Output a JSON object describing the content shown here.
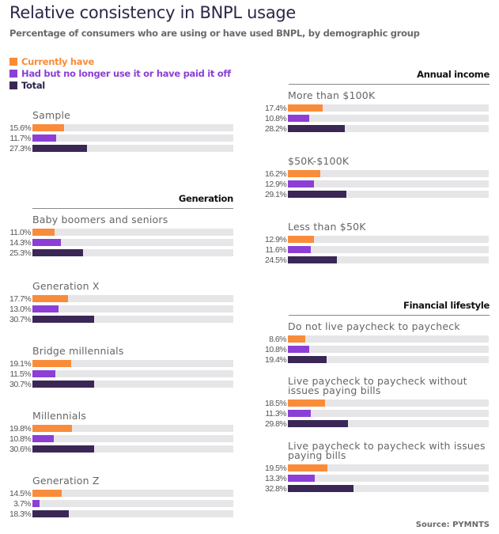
{
  "title": "Relative consistency in BNPL usage",
  "subtitle": "Percentage of consumers who are using or have used BNPL, by demographic group",
  "source": "Source: PYMNTS",
  "colors": {
    "current": "#f98c3a",
    "former": "#8c3fd6",
    "total": "#3a2756",
    "track": "#e6e6e8"
  },
  "legend": [
    {
      "label": "Currently have",
      "key": "current"
    },
    {
      "label": "Had but no longer use it or have paid it off",
      "key": "former"
    },
    {
      "label": "Total",
      "key": "total"
    }
  ],
  "sections": {
    "generation": "Generation",
    "income": "Annual income",
    "lifestyle": "Financial lifestyle"
  },
  "chart_data": {
    "type": "bar",
    "orientation": "horizontal",
    "title": "Relative consistency in BNPL usage",
    "subtitle": "Percentage of consumers who are using or have used BNPL, by demographic group",
    "xlim": [
      0,
      100
    ],
    "unit": "%",
    "series_names": [
      "Currently have",
      "Had but no longer use it or have paid it off",
      "Total"
    ],
    "groups": [
      {
        "section": "",
        "label": "Sample",
        "values": [
          15.6,
          11.7,
          27.3
        ],
        "labels": [
          "15.6%",
          "11.7%",
          "27.3%"
        ]
      },
      {
        "section": "Generation",
        "label": "Baby boomers and seniors",
        "values": [
          11.0,
          14.3,
          25.3
        ],
        "labels": [
          "11.0%",
          "14.3%",
          "25.3%"
        ]
      },
      {
        "section": "Generation",
        "label": "Generation X",
        "values": [
          17.7,
          13.0,
          30.7
        ],
        "labels": [
          "17.7%",
          "13.0%",
          "30.7%"
        ]
      },
      {
        "section": "Generation",
        "label": "Bridge millennials",
        "values": [
          19.1,
          11.5,
          30.7
        ],
        "labels": [
          "19.1%",
          "11.5%",
          "30.7%"
        ]
      },
      {
        "section": "Generation",
        "label": "Millennials",
        "values": [
          19.8,
          10.8,
          30.6
        ],
        "labels": [
          "19.8%",
          "10.8%",
          "30.6%"
        ]
      },
      {
        "section": "Generation",
        "label": "Generation Z",
        "values": [
          14.5,
          3.7,
          18.3
        ],
        "labels": [
          "14.5%",
          "3.7%",
          "18.3%"
        ]
      },
      {
        "section": "Annual income",
        "label": "More than $100K",
        "values": [
          17.4,
          10.8,
          28.2
        ],
        "labels": [
          "17.4%",
          "10.8%",
          "28.2%"
        ]
      },
      {
        "section": "Annual income",
        "label": "$50K-$100K",
        "values": [
          16.2,
          12.9,
          29.1
        ],
        "labels": [
          "16.2%",
          "12.9%",
          "29.1%"
        ]
      },
      {
        "section": "Annual income",
        "label": "Less than $50K",
        "values": [
          12.9,
          11.6,
          24.5
        ],
        "labels": [
          "12.9%",
          "11.6%",
          "24.5%"
        ]
      },
      {
        "section": "Financial lifestyle",
        "label": "Do not live paycheck to paycheck",
        "values": [
          8.6,
          10.8,
          19.4
        ],
        "labels": [
          "8.6%",
          "10.8%",
          "19.4%"
        ]
      },
      {
        "section": "Financial lifestyle",
        "label": "Live paycheck to paycheck without issues paying bills",
        "values": [
          18.5,
          11.3,
          29.8
        ],
        "labels": [
          "18.5%",
          "11.3%",
          "29.8%"
        ]
      },
      {
        "section": "Financial lifestyle",
        "label": "Live paycheck to paycheck with issues paying bills",
        "values": [
          19.5,
          13.3,
          32.8
        ],
        "labels": [
          "19.5%",
          "13.3%",
          "32.8%"
        ]
      }
    ]
  }
}
